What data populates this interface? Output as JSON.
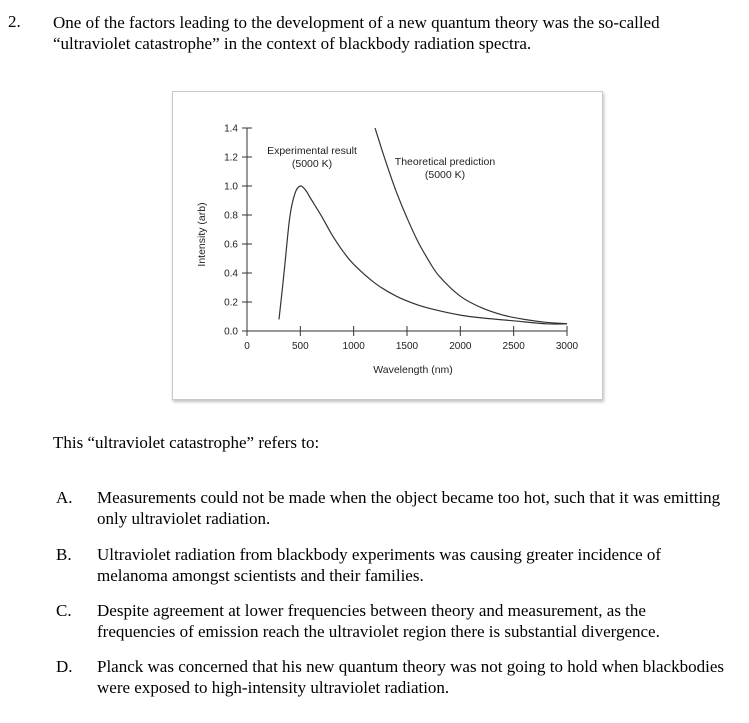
{
  "question": {
    "number": "2.",
    "text": "One of the factors leading to the development of a new quantum theory was the so-called “ultraviolet catastrophe” in the context of blackbody radiation spectra.",
    "prompt": "This “ultraviolet catastrophe” refers to:"
  },
  "options": [
    {
      "letter": "A.",
      "text": "Measurements could not be made when the object became too hot, such that it was emitting only ultraviolet radiation."
    },
    {
      "letter": "B.",
      "text": "Ultraviolet radiation from blackbody experiments was causing greater incidence of melanoma amongst scientists and their families."
    },
    {
      "letter": "C.",
      "text": "Despite agreement at lower frequencies between theory and measurement, as the frequencies of emission reach the ultraviolet region there is substantial divergence."
    },
    {
      "letter": "D.",
      "text": "Planck was concerned that his new quantum theory was not going to hold when blackbodies were exposed to high-intensity ultraviolet radiation."
    }
  ],
  "chart_data": {
    "type": "line",
    "xlabel": "Wavelength (nm)",
    "ylabel": "Intensity (arb)",
    "xlim": [
      0,
      3000
    ],
    "ylim": [
      0,
      1.4
    ],
    "x_ticks": [
      "0",
      "500",
      "1000",
      "1500",
      "2000",
      "2500",
      "3000"
    ],
    "y_ticks": [
      "0.0",
      "0.2",
      "0.4",
      "0.6",
      "0.8",
      "1.0",
      "1.2",
      "1.4"
    ],
    "grid": false,
    "annotations": [
      {
        "line1": "Experimental result",
        "line2": "(5000 K)"
      },
      {
        "line1": "Theoretical prediction",
        "line2": "(5000 K)"
      }
    ],
    "series": [
      {
        "x": [
          300,
          350,
          400,
          450,
          500,
          550,
          600,
          700,
          800,
          900,
          1000,
          1200,
          1400,
          1600,
          1800,
          2000,
          2200,
          2500,
          2800,
          3000
        ],
        "y": [
          0.08,
          0.42,
          0.78,
          0.95,
          1.0,
          0.97,
          0.91,
          0.79,
          0.66,
          0.55,
          0.46,
          0.33,
          0.24,
          0.18,
          0.14,
          0.11,
          0.09,
          0.07,
          0.05,
          0.05
        ]
      },
      {
        "x": [
          1200,
          1300,
          1400,
          1500,
          1600,
          1700,
          1800,
          2000,
          2200,
          2400,
          2600,
          2800,
          3000
        ],
        "y": [
          1.4,
          1.17,
          0.96,
          0.78,
          0.62,
          0.49,
          0.38,
          0.24,
          0.16,
          0.11,
          0.08,
          0.06,
          0.05
        ]
      }
    ]
  }
}
